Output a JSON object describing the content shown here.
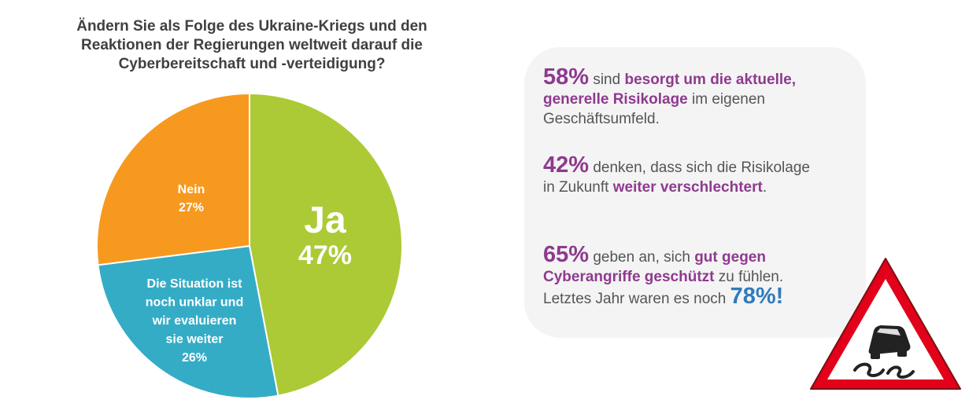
{
  "colors": {
    "title": "#404040",
    "text": "#555555",
    "highlight": "#8e3a8f",
    "blue_highlight": "#2f7bbd",
    "sign_red": "#e2001a",
    "label_text": "#ffffff"
  },
  "chart_data": {
    "type": "pie",
    "title_lines": [
      "Ändern Sie als Folge des Ukraine-Kriegs und den",
      "Reaktionen der Regierungen weltweit darauf die",
      "Cyberbereitschaft und -verteidigung?"
    ],
    "slices": [
      {
        "label_lines": [
          "Ja"
        ],
        "value_label": "47%",
        "value": 47,
        "color": "#abca35"
      },
      {
        "label_lines": [
          "Die Situation ist",
          "noch unklar und",
          "wir evaluieren",
          "sie weiter"
        ],
        "value_label": "26%",
        "value": 26,
        "color": "#35acc6"
      },
      {
        "label_lines": [
          "Nein"
        ],
        "value_label": "27%",
        "value": 27,
        "color": "#f7991e"
      }
    ],
    "start": "12 o'clock",
    "direction": "clockwise"
  },
  "stats": [
    {
      "lines": [
        [
          {
            "t": "58%",
            "s": "big"
          },
          {
            "t": " sind ",
            "s": "n"
          },
          {
            "t": "besorgt um die aktuelle,",
            "s": "em"
          }
        ],
        [
          {
            "t": "generelle Risikolage",
            "s": "em"
          },
          {
            "t": " im eigenen",
            "s": "n"
          }
        ],
        [
          {
            "t": "Geschäftsumfeld.",
            "s": "n"
          }
        ]
      ]
    },
    {
      "lines": [
        [
          {
            "t": "42%",
            "s": "big"
          },
          {
            "t": " denken, dass sich die Risikolage",
            "s": "n"
          }
        ],
        [
          {
            "t": "in Zukunft ",
            "s": "n"
          },
          {
            "t": "weiter verschlechtert",
            "s": "em"
          },
          {
            "t": ".",
            "s": "n"
          }
        ]
      ]
    },
    {
      "lines": [
        [
          {
            "t": "65%",
            "s": "big"
          },
          {
            "t": "  geben an, sich ",
            "s": "n"
          },
          {
            "t": "gut gegen",
            "s": "em"
          }
        ],
        [
          {
            "t": "Cyberangriffe geschützt",
            "s": "em"
          },
          {
            "t": " zu fühlen.",
            "s": "n"
          }
        ],
        [
          {
            "t": "Letztes Jahr waren es noch ",
            "s": "n"
          },
          {
            "t": "78%!",
            "s": "bigblue"
          }
        ]
      ]
    }
  ],
  "sign": {
    "icon": "slippery-road-warning-sign-icon"
  }
}
